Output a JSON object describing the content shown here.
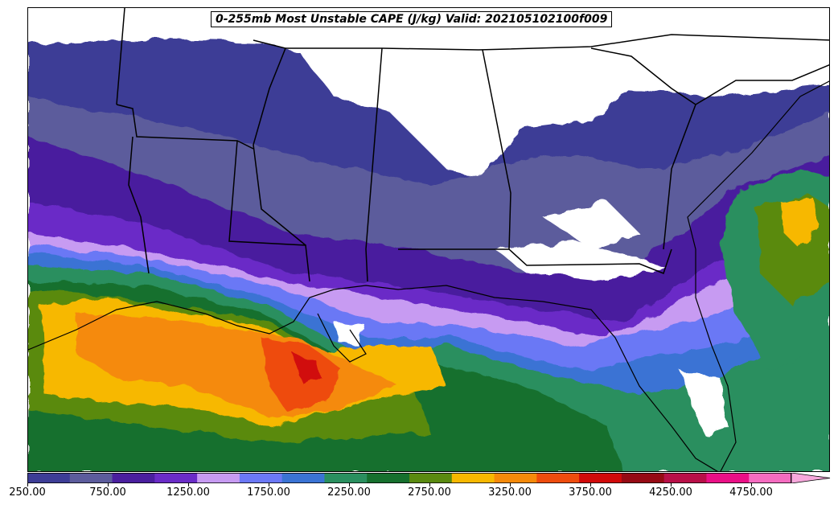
{
  "title": "0-255mb Most Unstable CAPE (J/kg) Valid: 202105102100f009",
  "colorbar": {
    "min": 250,
    "max": 5000,
    "step": 250,
    "extend": "max",
    "colors": [
      "#3d3d96",
      "#5c5c9c",
      "#4a1f9e",
      "#6a2cc7",
      "#c79bf2",
      "#6b78f5",
      "#3a73d4",
      "#2a8f5f",
      "#16702e",
      "#5a8a10",
      "#f7b800",
      "#f58a0a",
      "#ee4c0d",
      "#d10a0a",
      "#960a14",
      "#b80f48",
      "#ea0f86",
      "#f56cc0",
      "#f7a8dc"
    ],
    "tick_labels": [
      "250.00",
      "750.00",
      "1250.00",
      "1750.00",
      "2250.00",
      "2750.00",
      "3250.00",
      "3750.00",
      "4250.00",
      "4750.00"
    ]
  },
  "map": {
    "region": "Southeastern United States and Gulf of Mexico",
    "layers": [
      "CAPE shaded contours",
      "state borders",
      "coastlines"
    ]
  }
}
